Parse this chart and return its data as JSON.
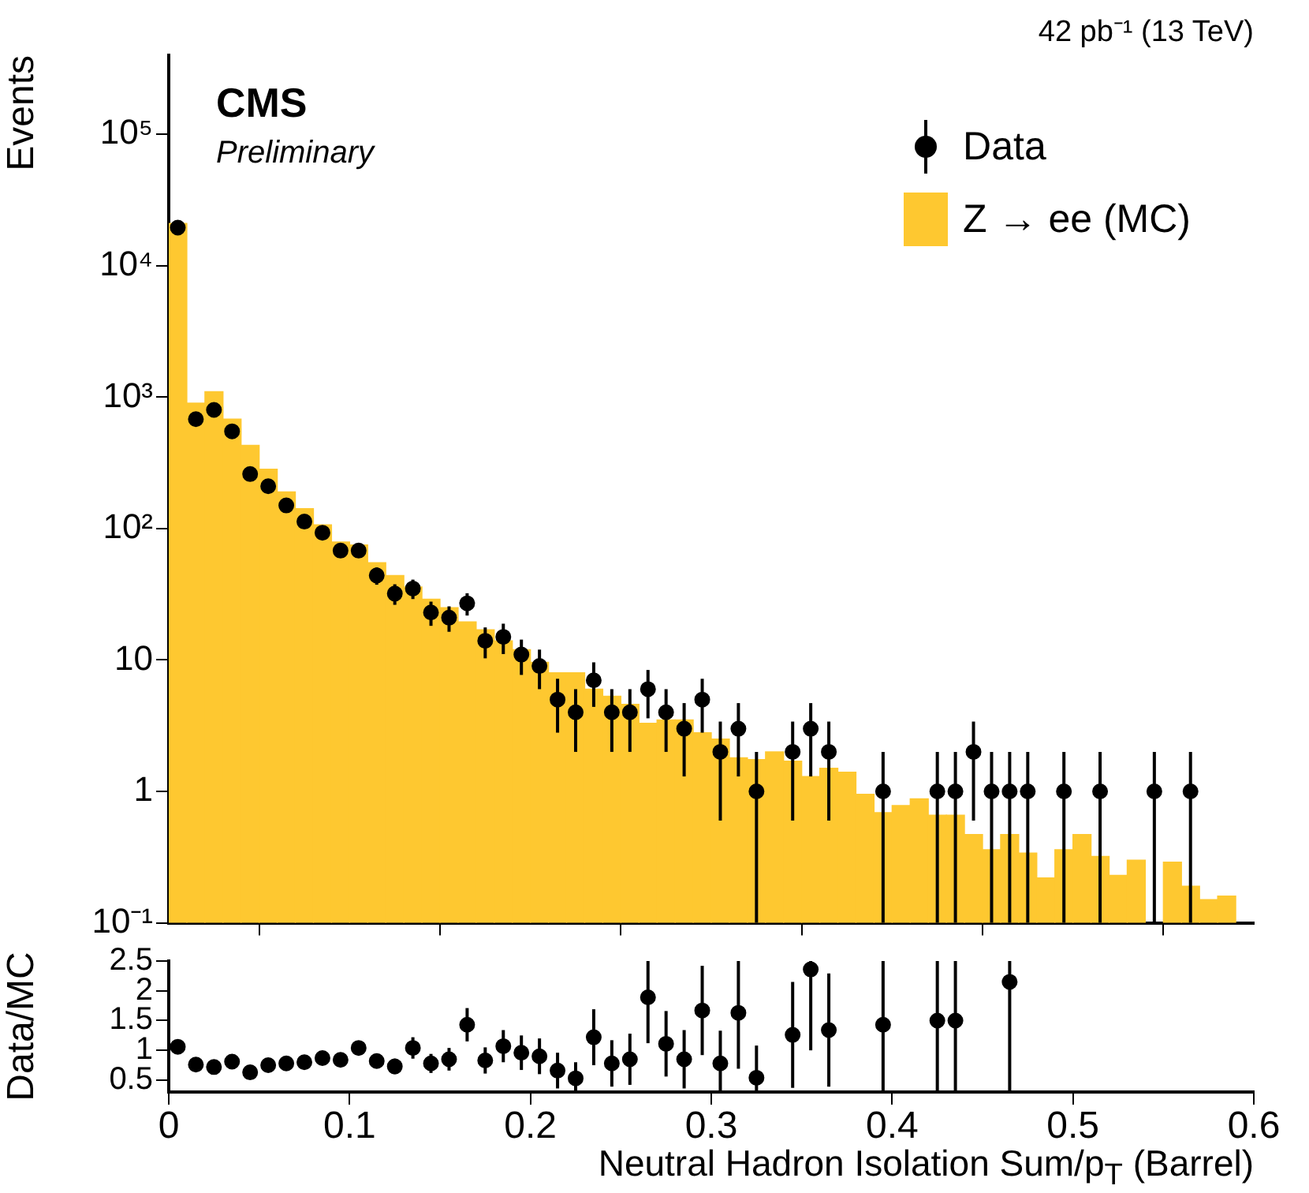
{
  "chart_data": [
    {
      "type": "histogram",
      "title": "42 pb⁻¹ (13 TeV)",
      "ylabel": "Events",
      "annotations": [
        "CMS",
        "Preliminary"
      ],
      "legend": "top right",
      "grid": false,
      "log": "y",
      "marker": "circle",
      "tick_labels": "y",
      "bins": [
        0,
        0.01,
        0.02,
        0.03,
        0.04,
        0.05,
        0.06,
        0.07,
        0.08,
        0.09,
        0.1,
        0.11,
        0.12,
        0.13,
        0.14,
        0.15,
        0.16,
        0.17,
        0.18,
        0.19,
        0.2,
        0.21,
        0.22,
        0.23,
        0.24,
        0.25,
        0.26,
        0.27,
        0.28,
        0.29,
        0.3,
        0.31,
        0.32,
        0.33,
        0.34,
        0.35,
        0.36,
        0.37,
        0.38,
        0.39,
        0.4,
        0.41,
        0.42,
        0.43,
        0.44,
        0.45,
        0.46,
        0.47,
        0.48,
        0.49,
        0.5,
        0.51,
        0.52,
        0.53,
        0.54,
        0.55,
        0.56,
        0.57,
        0.58,
        0.59,
        0.6
      ],
      "xlim": [
        0,
        0.6
      ],
      "xticks": [
        0,
        0.1,
        0.2,
        0.3,
        0.4,
        0.5,
        0.6
      ],
      "ylim": [
        0.1,
        400000
      ],
      "yticks": [
        {
          "value": 0.1,
          "label": "10⁻¹"
        },
        1,
        10,
        {
          "value": 100,
          "label": "10²"
        },
        {
          "value": 1000,
          "label": "10³"
        },
        {
          "value": 10000,
          "label": "10⁴"
        },
        {
          "value": 100000,
          "label": "10⁵"
        }
      ],
      "series": [
        {
          "name": "Data",
          "type": "scatter",
          "color": "#000000",
          "x": [
            0.005,
            0.015,
            0.025,
            0.035,
            0.045,
            0.055,
            0.065,
            0.075,
            0.085,
            0.095,
            0.105,
            0.115,
            0.125,
            0.135,
            0.145,
            0.155,
            0.165,
            0.175,
            0.185,
            0.195,
            0.205,
            0.215,
            0.225,
            0.235,
            0.245,
            0.255,
            0.265,
            0.275,
            0.285,
            0.295,
            0.305,
            0.315,
            0.325,
            0.345,
            0.355,
            0.365,
            0.395,
            0.425,
            0.435,
            0.445,
            0.455,
            0.465,
            0.475,
            0.495,
            0.515,
            0.545,
            0.565
          ],
          "values": [
            19500,
            680,
            800,
            550,
            260,
            210,
            150,
            113,
            93,
            68,
            68,
            44,
            32,
            35,
            23,
            21,
            27,
            14,
            15,
            11,
            9,
            5,
            4,
            7,
            4,
            4,
            6,
            4,
            3,
            5,
            2,
            3,
            1,
            2,
            3,
            2,
            1,
            1,
            1,
            2,
            1,
            1,
            1,
            1,
            1,
            1,
            1
          ],
          "errors": [
            null,
            null,
            null,
            null,
            null,
            null,
            null,
            null,
            null,
            null,
            null,
            6.6,
            5.7,
            5.9,
            4.8,
            4.6,
            5.2,
            3.7,
            3.9,
            3.3,
            3,
            2.2,
            2,
            2.6,
            2,
            2,
            2.4,
            2,
            1.7,
            2.2,
            1.4,
            1.7,
            [
              0.1,
              2
            ],
            1.4,
            1.7,
            1.4,
            [
              0.1,
              2
            ],
            [
              0.1,
              2
            ],
            [
              0.1,
              2
            ],
            1.4,
            [
              0.1,
              2
            ],
            [
              0.1,
              2
            ],
            [
              0.1,
              2
            ],
            [
              0.1,
              2
            ],
            [
              0.1,
              2
            ],
            [
              0.1,
              2
            ],
            [
              0.1,
              2
            ]
          ]
        },
        {
          "name": "Z → ee (MC)",
          "type": "histogram",
          "color": "#fec830",
          "values": [
            21000,
            900,
            1100,
            680,
            430,
            283,
            190,
            142,
            107,
            79,
            75,
            55,
            44,
            36,
            29,
            25,
            19.5,
            17,
            14,
            12,
            9.6,
            8,
            8,
            6,
            5.3,
            4.6,
            3.3,
            3.5,
            3.5,
            2.8,
            2.5,
            1.8,
            1.75,
            2,
            1.7,
            1.3,
            1.5,
            1.4,
            0.95,
            0.69,
            0.78,
            0.88,
            0.66,
            0.66,
            0.47,
            0.36,
            0.47,
            0.34,
            0.22,
            0.36,
            0.47,
            0.32,
            0.23,
            0.3,
            null,
            0.29,
            0.19,
            0.15,
            0.16,
            null
          ]
        }
      ]
    },
    {
      "type": "scatter",
      "xlabel": "Neutral Hadron Isolation Sum/p$_{T}$ (Barrel)",
      "ylabel": "Data/MC",
      "grid": false,
      "marker": "circle",
      "xlim": [
        0,
        0.6
      ],
      "xticks": [
        0,
        0.1,
        0.2,
        0.3,
        0.4,
        0.5,
        0.6
      ],
      "ylim": [
        0.3,
        2.5
      ],
      "yticks": [
        0.5,
        1,
        1.5,
        2,
        2.5
      ],
      "series": [
        {
          "color": "#000000",
          "x": [
            0.005,
            0.015,
            0.025,
            0.035,
            0.045,
            0.055,
            0.065,
            0.075,
            0.085,
            0.095,
            0.105,
            0.115,
            0.125,
            0.135,
            0.145,
            0.155,
            0.165,
            0.175,
            0.185,
            0.195,
            0.205,
            0.215,
            0.225,
            0.235,
            0.245,
            0.255,
            0.265,
            0.275,
            0.285,
            0.295,
            0.305,
            0.315,
            0.325,
            0.345,
            0.355,
            0.365,
            0.395,
            0.425,
            0.435,
            0.465
          ],
          "values": [
            1.06,
            0.76,
            0.72,
            0.81,
            0.63,
            0.75,
            0.78,
            0.8,
            0.87,
            0.84,
            1.04,
            0.82,
            0.73,
            1.04,
            0.78,
            0.85,
            1.43,
            0.83,
            1.07,
            0.96,
            0.9,
            0.66,
            0.53,
            1.22,
            0.78,
            0.85,
            1.89,
            1.11,
            0.85,
            1.67,
            0.78,
            1.63,
            0.54,
            1.26,
            2.36,
            1.34,
            1.43,
            1.5,
            1.5,
            2.15
          ],
          "errors": [
            null,
            null,
            null,
            null,
            null,
            null,
            null,
            null,
            null,
            null,
            null,
            0.12,
            0.13,
            0.18,
            0.16,
            0.19,
            0.28,
            0.22,
            0.27,
            0.29,
            0.3,
            0.3,
            [
              0.3,
              0.8
            ],
            0.47,
            0.39,
            0.43,
            [
              1.12,
              2.5
            ],
            0.55,
            0.49,
            0.75,
            [
              0.3,
              1.33
            ],
            [
              0.69,
              2.5
            ],
            [
              0.3,
              1.08
            ],
            0.89,
            [
              1,
              2.5
            ],
            0.95,
            [
              0.3,
              2.5
            ],
            [
              0.3,
              2.5
            ],
            [
              0.3,
              2.5
            ],
            [
              0.3,
              2.5
            ]
          ]
        }
      ]
    }
  ]
}
